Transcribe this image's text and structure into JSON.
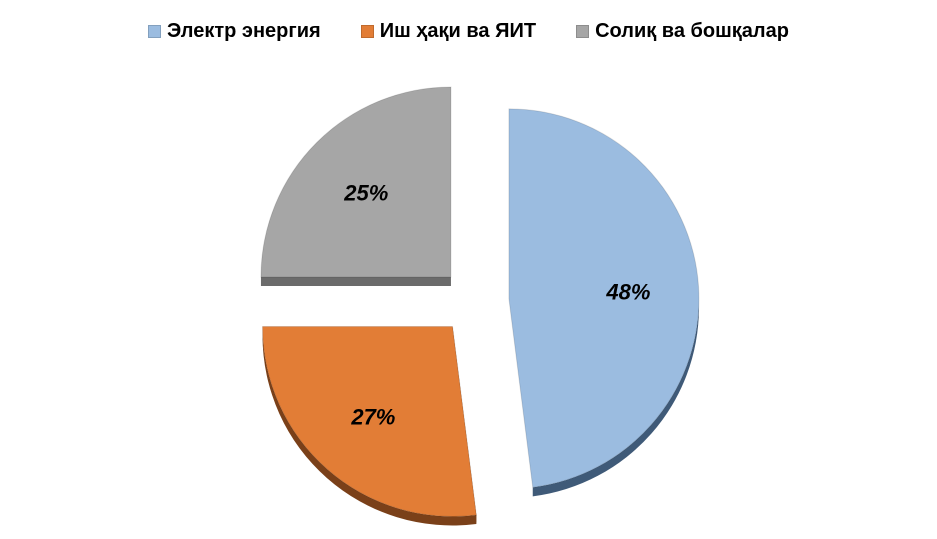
{
  "chart_data": {
    "type": "pie",
    "categories": [
      "Электр энергия",
      "Иш ҳақи ва ЯИТ",
      "Солиқ ва бошқалар"
    ],
    "values": [
      48,
      27,
      25
    ],
    "value_labels": [
      "48%",
      "27%",
      "25%"
    ],
    "colors": [
      "#9bbce0",
      "#e27d36",
      "#a6a6a6"
    ],
    "side_colors": [
      "#3f5a78",
      "#7a4019",
      "#6b6b6b"
    ],
    "exploded": true,
    "legend_position": "top"
  }
}
